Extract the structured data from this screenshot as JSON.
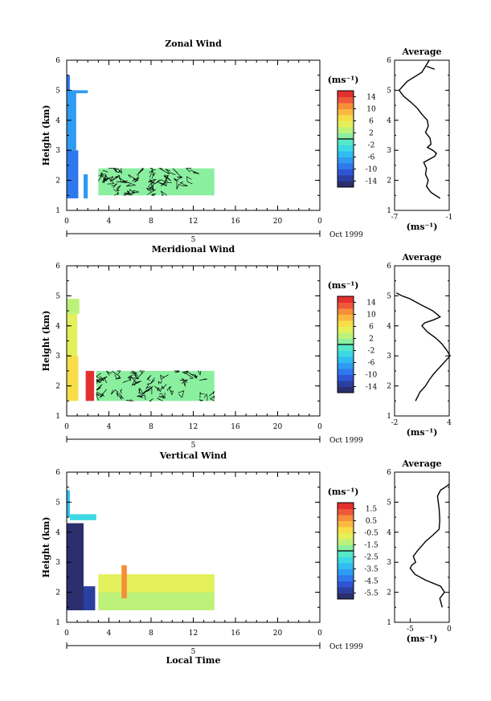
{
  "chart_data": [
    {
      "type": "heatmap",
      "title": "Zonal Wind",
      "ylabel": "Height (km)",
      "xlabel": "",
      "xlim": [
        0,
        24
      ],
      "ylim": [
        1,
        6
      ],
      "xticks": [
        "0",
        "4",
        "8",
        "12",
        "16",
        "20",
        "0"
      ],
      "yticks": [
        "1",
        "2",
        "3",
        "4",
        "5",
        "6"
      ],
      "date_bar": {
        "label": "5",
        "unit": "Oct 1999"
      },
      "colorbar": {
        "unit": "(ms⁻¹)",
        "ticks": [
          "14",
          "10",
          "6",
          "2",
          "-2",
          "-6",
          "-10",
          "-14"
        ],
        "min": -16,
        "max": 16
      },
      "fields": [
        {
          "x0": 0,
          "x1": 0.3,
          "y0": 5.0,
          "y1": 5.5,
          "v": -9
        },
        {
          "x0": 0.3,
          "x1": 2.0,
          "y0": 4.9,
          "y1": 5.0,
          "v": -8
        },
        {
          "x0": 0,
          "x1": 0.9,
          "y0": 3.0,
          "y1": 5.0,
          "v": -7
        },
        {
          "x0": 0,
          "x1": 1.1,
          "y0": 1.4,
          "y1": 3.0,
          "v": -9
        },
        {
          "x0": 1.6,
          "x1": 2.0,
          "y0": 1.4,
          "y1": 2.2,
          "v": -7
        },
        {
          "x0": 3.0,
          "x1": 14.0,
          "y0": 1.5,
          "y1": 2.4,
          "v": 1,
          "contoured": true
        }
      ],
      "average": {
        "title": "Average",
        "xlim": [
          -7,
          -1
        ],
        "xticks": [
          "-7",
          "-1"
        ],
        "xlabel": "(ms⁻¹)",
        "x": [
          -2.0,
          -3.0,
          -3.5,
          -3.3,
          -3.6,
          -3.5,
          -3.8,
          -2.6,
          -2.4,
          -2.8,
          -3.4,
          -3.0,
          -3.1,
          -3.6,
          -3.3,
          -3.4,
          -4.0,
          -4.5,
          -5.2,
          -6.0,
          -6.5,
          -5.6,
          -4.0,
          -3.2
        ],
        "y": [
          1.4,
          1.6,
          1.8,
          2.0,
          2.2,
          2.4,
          2.6,
          2.8,
          2.9,
          3.0,
          3.1,
          3.2,
          3.4,
          3.6,
          3.8,
          4.0,
          4.2,
          4.4,
          4.6,
          4.8,
          5.0,
          5.3,
          5.6,
          6.0
        ]
      },
      "average_marks": {
        "x": [
          -3.5,
          -2.6
        ],
        "y": [
          5.8,
          5.7
        ]
      }
    },
    {
      "type": "heatmap",
      "title": "Meridional Wind",
      "ylabel": "Height (km)",
      "xlabel": "",
      "xlim": [
        0,
        24
      ],
      "ylim": [
        1,
        6
      ],
      "xticks": [
        "0",
        "4",
        "8",
        "12",
        "16",
        "20",
        "0"
      ],
      "yticks": [
        "1",
        "2",
        "3",
        "4",
        "5",
        "6"
      ],
      "date_bar": {
        "label": "5",
        "unit": "Oct 1999"
      },
      "colorbar": {
        "unit": "(ms⁻¹)",
        "ticks": [
          "14",
          "10",
          "6",
          "2",
          "-2",
          "-6",
          "-10",
          "-14"
        ],
        "min": -16,
        "max": 16
      },
      "fields": [
        {
          "x0": 0,
          "x1": 1.2,
          "y0": 4.4,
          "y1": 4.9,
          "v": 2
        },
        {
          "x0": 0,
          "x1": 1.0,
          "y0": 3.0,
          "y1": 4.4,
          "v": 5
        },
        {
          "x0": 0,
          "x1": 1.1,
          "y0": 1.5,
          "y1": 3.0,
          "v": 7
        },
        {
          "x0": 1.8,
          "x1": 2.6,
          "y0": 1.5,
          "y1": 2.5,
          "v": 15
        },
        {
          "x0": 2.8,
          "x1": 14.0,
          "y0": 1.5,
          "y1": 2.5,
          "v": 1,
          "contoured": true
        }
      ],
      "average": {
        "title": "Average",
        "xlim": [
          -2,
          4
        ],
        "xticks": [
          "-2",
          "4"
        ],
        "xlabel": "(ms⁻¹)",
        "x": [
          0.3,
          0.8,
          1.4,
          1.8,
          2.3,
          2.9,
          3.5,
          4.1,
          3.7,
          3.2,
          2.5,
          1.6,
          1.0,
          1.3,
          2.3,
          3.0,
          2.2,
          0.9,
          -0.3,
          -1.2,
          -1.8
        ],
        "y": [
          1.5,
          1.8,
          2.0,
          2.2,
          2.4,
          2.6,
          2.8,
          3.0,
          3.2,
          3.4,
          3.6,
          3.8,
          4.0,
          4.1,
          4.2,
          4.3,
          4.5,
          4.7,
          4.9,
          5.0,
          5.1
        ]
      }
    },
    {
      "type": "heatmap",
      "title": "Vertical Wind",
      "ylabel": "Height (km)",
      "xlabel": "Local Time",
      "xlim": [
        0,
        24
      ],
      "ylim": [
        1,
        6
      ],
      "xticks": [
        "0",
        "4",
        "8",
        "12",
        "16",
        "20",
        "0"
      ],
      "yticks": [
        "1",
        "2",
        "3",
        "4",
        "5",
        "6"
      ],
      "date_bar": {
        "label": "5",
        "unit": "Oct 1999"
      },
      "colorbar": {
        "unit": "(ms⁻¹)",
        "ticks": [
          "1.5",
          "0.5",
          "-0.5",
          "-1.5",
          "-2.5",
          "-3.5",
          "-4.5",
          "-5.5"
        ],
        "min": -6,
        "max": 2
      },
      "fields": [
        {
          "x0": 0,
          "x1": 0.3,
          "y0": 4.5,
          "y1": 5.4,
          "v": -3.2
        },
        {
          "x0": 0.3,
          "x1": 2.8,
          "y0": 4.4,
          "y1": 4.6,
          "v": -3.0
        },
        {
          "x0": 0,
          "x1": 1.6,
          "y0": 1.4,
          "y1": 4.3,
          "v": -5.8
        },
        {
          "x0": 1.6,
          "x1": 2.7,
          "y0": 1.4,
          "y1": 2.2,
          "v": -5.2
        },
        {
          "x0": 3.0,
          "x1": 14.0,
          "y0": 1.4,
          "y1": 2.6,
          "v": -0.6
        },
        {
          "x0": 3.0,
          "x1": 14.0,
          "y0": 1.4,
          "y1": 2.0,
          "v": -1.1
        },
        {
          "x0": 5.2,
          "x1": 5.7,
          "y0": 1.8,
          "y1": 2.9,
          "v": 0.9
        }
      ],
      "average": {
        "title": "Average",
        "xlim": [
          -7,
          0
        ],
        "xticks": [
          "-5",
          "0"
        ],
        "xlabel": "(ms⁻¹)",
        "x": [
          -0.9,
          -1.2,
          -0.6,
          -1.1,
          -3.0,
          -4.4,
          -5.0,
          -4.8,
          -4.3,
          -4.6,
          -4.0,
          -3.0,
          -2.1,
          -1.3,
          -1.2,
          -1.3,
          -1.5,
          -1.1,
          -0.5,
          0.0
        ],
        "y": [
          1.5,
          1.8,
          2.0,
          2.2,
          2.4,
          2.6,
          2.8,
          2.9,
          3.0,
          3.2,
          3.4,
          3.7,
          3.9,
          4.1,
          4.4,
          4.8,
          5.2,
          5.4,
          5.5,
          5.6
        ]
      }
    }
  ]
}
